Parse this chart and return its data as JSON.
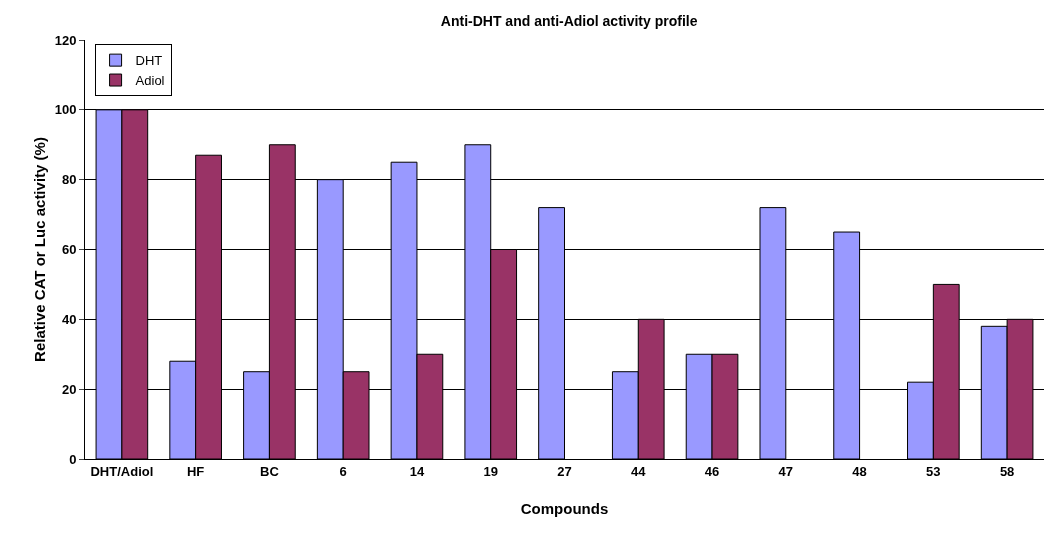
{
  "chart_data": {
    "type": "bar",
    "title": "Anti-DHT and anti-Adiol activity profile",
    "xlabel": "Compounds",
    "ylabel": "Relative CAT or Luc activity (%)",
    "categories": [
      "DHT/Adiol",
      "HF",
      "BC",
      "6",
      "14",
      "19",
      "27",
      "44",
      "46",
      "47",
      "48",
      "53",
      "58"
    ],
    "series": [
      {
        "name": "DHT",
        "color": "#9999ff",
        "values": [
          100,
          28,
          25,
          80,
          85,
          90,
          72,
          25,
          30,
          72,
          65,
          22,
          38
        ]
      },
      {
        "name": "Adiol",
        "color": "#993366",
        "values": [
          100,
          87,
          90,
          25,
          30,
          60,
          null,
          40,
          30,
          null,
          null,
          50,
          40
        ]
      }
    ],
    "ylim": [
      0,
      120
    ],
    "yticks": [
      0,
      20,
      40,
      60,
      80,
      100,
      120
    ],
    "grid": "y",
    "legend": "top left"
  }
}
